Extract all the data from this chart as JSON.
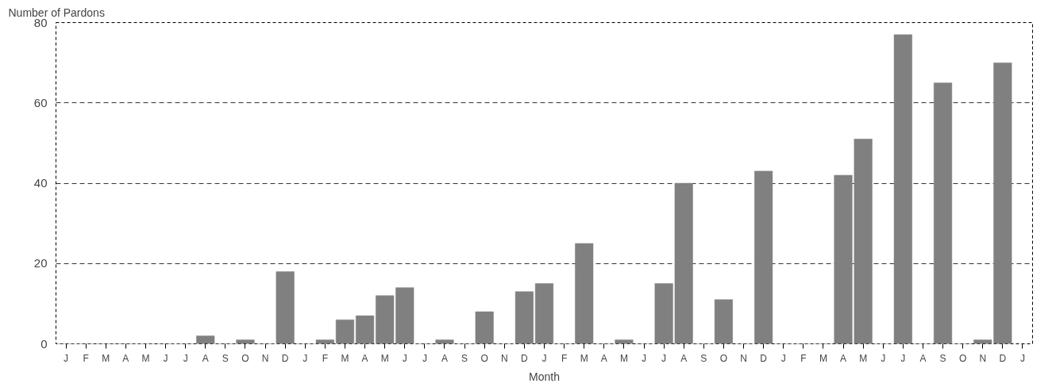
{
  "chart_data": {
    "type": "bar",
    "xlabel": "Month",
    "ylabel": "Number of Pardons",
    "categories": [
      "J",
      "F",
      "M",
      "A",
      "M",
      "J",
      "J",
      "A",
      "S",
      "O",
      "N",
      "D",
      "J",
      "F",
      "M",
      "A",
      "M",
      "J",
      "J",
      "A",
      "S",
      "O",
      "N",
      "D",
      "J",
      "F",
      "M",
      "A",
      "M",
      "J",
      "J",
      "A",
      "S",
      "O",
      "N",
      "D",
      "J",
      "F",
      "M",
      "A",
      "M",
      "J",
      "J",
      "A",
      "S",
      "O",
      "N",
      "D",
      "J"
    ],
    "values": [
      0,
      0,
      0,
      0,
      0,
      0,
      0,
      2,
      0,
      1,
      0,
      18,
      0,
      1,
      6,
      7,
      12,
      14,
      0,
      1,
      0,
      8,
      0,
      13,
      15,
      0,
      25,
      0,
      1,
      0,
      15,
      40,
      0,
      11,
      0,
      43,
      0,
      0,
      0,
      42,
      51,
      0,
      77,
      0,
      65,
      0,
      1,
      70,
      null
    ],
    "color": "#808080",
    "ylim": [
      0,
      80
    ],
    "yticks": [
      0,
      20,
      40,
      60,
      80
    ],
    "grid": "y"
  }
}
